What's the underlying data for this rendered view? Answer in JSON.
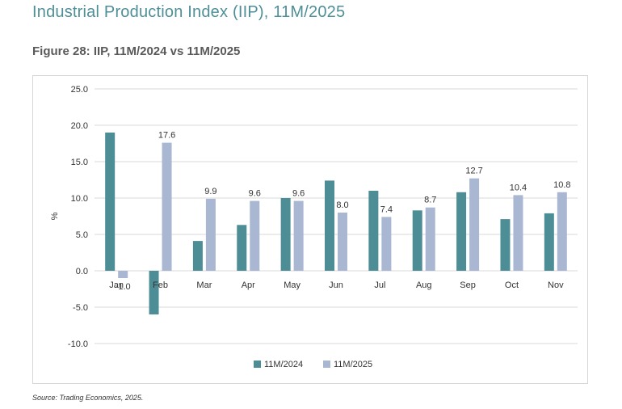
{
  "header": {
    "title": "Industrial Production Index (IIP), 11M/2025",
    "figure_title": "Figure 28: IIP, 11M/2024 vs 11M/2025"
  },
  "footer": {
    "source": "Source: Trading Economics, 2025."
  },
  "colors": {
    "series_2024": "#4d8e96",
    "series_2025": "#a9b7d3",
    "title": "#4e8f98",
    "grid": "#d9d9d9"
  },
  "chart_data": {
    "type": "bar",
    "title": "Figure 28: IIP, 11M/2024 vs 11M/2025",
    "xlabel": "",
    "ylabel": "%",
    "ylim": [
      -10,
      25
    ],
    "yticks": [
      25,
      20,
      15,
      10,
      5,
      0,
      -5,
      -10
    ],
    "ytick_labels": [
      "25.0",
      "20.0",
      "15.0",
      "10.0",
      "5.0",
      "0.0",
      "-5.0",
      "-10.0"
    ],
    "grid": true,
    "legend_position": "bottom-center",
    "categories": [
      "Jan",
      "Feb",
      "Mar",
      "Apr",
      "May",
      "Jun",
      "Jul",
      "Aug",
      "Sep",
      "Oct",
      "Nov"
    ],
    "series": [
      {
        "name": "11M/2024",
        "color": "#4d8e96",
        "values": [
          19.0,
          -6.0,
          4.1,
          6.3,
          10.0,
          12.4,
          11.0,
          8.3,
          10.8,
          7.1,
          7.9
        ],
        "labels": []
      },
      {
        "name": "11M/2025",
        "color": "#a9b7d3",
        "values": [
          -1.0,
          17.6,
          9.9,
          9.6,
          9.6,
          8.0,
          7.4,
          8.7,
          12.7,
          10.4,
          10.8
        ],
        "labels": [
          "-1.0",
          "17.6",
          "9.9",
          "9.6",
          "9.6",
          "8.0",
          "7.4",
          "8.7",
          "12.7",
          "10.4",
          "10.8"
        ]
      }
    ]
  }
}
